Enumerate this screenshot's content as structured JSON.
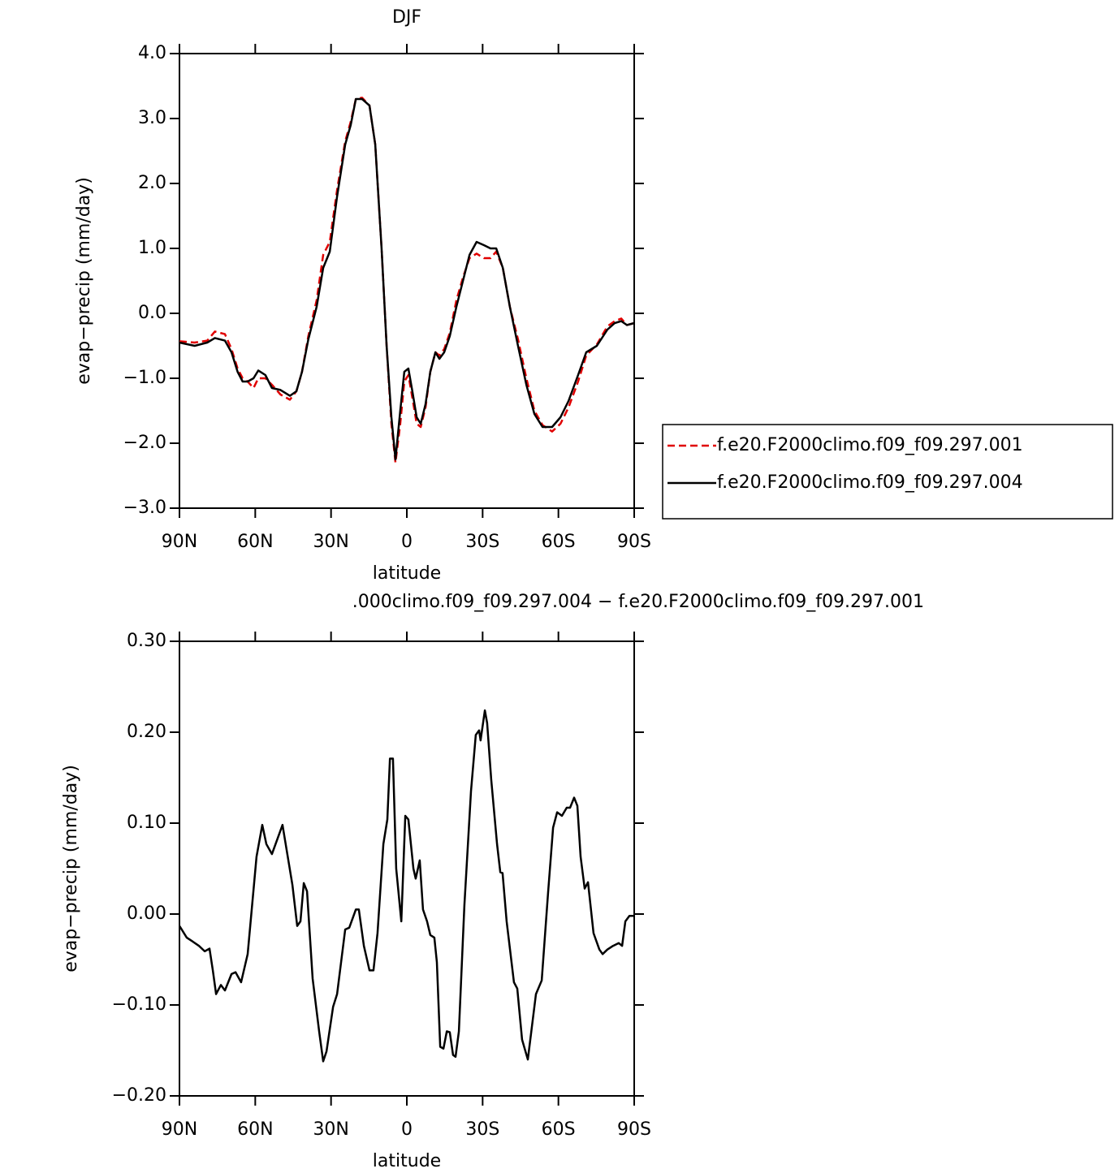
{
  "chart_data": [
    {
      "type": "line",
      "title": "DJF",
      "xlabel": "latitude",
      "ylabel": "evap−precip (mm/day)",
      "x": [
        90,
        84,
        79,
        76,
        72,
        69.4,
        67,
        65,
        63,
        60.7,
        58.8,
        56,
        53.4,
        50,
        46.3,
        43.7,
        41.5,
        39,
        35.7,
        33.1,
        30.5,
        27.6,
        24.4,
        22.2,
        20.2,
        17.7,
        14.8,
        12.5,
        10,
        8,
        6.1,
        4.5,
        2.6,
        1,
        -0.6,
        -2.2,
        -3.9,
        -5.5,
        -7.4,
        -9.3,
        -11.3,
        -12.9,
        -14.8,
        -17,
        -19.6,
        -22.2,
        -24.8,
        -27.6,
        -30.5,
        -33.1,
        -35.4,
        -38,
        -40.8,
        -44,
        -47.3,
        -50.5,
        -53.7,
        -57.5,
        -60.8,
        -64,
        -67.8,
        -71,
        -75.2,
        -79.4,
        -82.3,
        -84.9,
        -87.1,
        -90
      ],
      "series": [
        {
          "name": "f.e20.F2000climo.f09_f09.297.001",
          "color": "#e00000",
          "dashed": true,
          "values": [
            -0.43,
            -0.45,
            -0.42,
            -0.28,
            -0.32,
            -0.55,
            -0.85,
            -1.0,
            -1.05,
            -1.15,
            -1.0,
            -1.0,
            -1.1,
            -1.25,
            -1.33,
            -1.2,
            -0.9,
            -0.35,
            0.2,
            0.9,
            1.1,
            1.9,
            2.65,
            2.95,
            3.3,
            3.32,
            3.2,
            2.6,
            1.0,
            -0.5,
            -1.7,
            -2.3,
            -1.7,
            -1.05,
            -0.95,
            -1.3,
            -1.7,
            -1.75,
            -1.45,
            -0.9,
            -0.6,
            -0.65,
            -0.55,
            -0.3,
            0.2,
            0.55,
            0.85,
            0.92,
            0.85,
            0.85,
            0.95,
            0.7,
            0.1,
            -0.4,
            -1.0,
            -1.5,
            -1.72,
            -1.82,
            -1.7,
            -1.45,
            -1.05,
            -0.65,
            -0.48,
            -0.2,
            -0.12,
            -0.08,
            -0.18,
            -0.15
          ]
        },
        {
          "name": "f.e20.F2000climo.f09_f09.297.004",
          "color": "#000000",
          "dashed": false,
          "values": [
            -0.45,
            -0.5,
            -0.45,
            -0.38,
            -0.42,
            -0.6,
            -0.9,
            -1.05,
            -1.05,
            -1.0,
            -0.88,
            -0.95,
            -1.15,
            -1.18,
            -1.27,
            -1.2,
            -0.9,
            -0.4,
            0.1,
            0.7,
            0.95,
            1.8,
            2.6,
            2.9,
            3.3,
            3.3,
            3.2,
            2.6,
            1.0,
            -0.5,
            -1.6,
            -2.25,
            -1.5,
            -0.9,
            -0.85,
            -1.2,
            -1.6,
            -1.7,
            -1.4,
            -0.9,
            -0.6,
            -0.7,
            -0.6,
            -0.35,
            0.1,
            0.5,
            0.9,
            1.1,
            1.05,
            1.0,
            1.0,
            0.7,
            0.1,
            -0.5,
            -1.1,
            -1.55,
            -1.75,
            -1.75,
            -1.6,
            -1.35,
            -0.95,
            -0.6,
            -0.5,
            -0.25,
            -0.15,
            -0.12,
            -0.18,
            -0.15
          ]
        }
      ],
      "xlim": [
        90,
        -90
      ],
      "xticks": [
        {
          "value": 90,
          "label": "90N"
        },
        {
          "value": 60,
          "label": "60N"
        },
        {
          "value": 30,
          "label": "30N"
        },
        0,
        {
          "value": -30,
          "label": "30S"
        },
        {
          "value": -60,
          "label": "60S"
        },
        {
          "value": -90,
          "label": "90S"
        }
      ],
      "ylim": [
        -3,
        4
      ],
      "yticks": [
        {
          "value": 4,
          "label": "4.0"
        },
        {
          "value": 3,
          "label": "3.0"
        },
        {
          "value": 2,
          "label": "2.0"
        },
        {
          "value": 1,
          "label": "1.0"
        },
        {
          "value": 0,
          "label": "0.0"
        },
        {
          "value": -1,
          "label": "−1.0"
        },
        {
          "value": -2,
          "label": "−2.0"
        },
        {
          "value": -3,
          "label": "−3.0"
        }
      ],
      "legend": "right"
    },
    {
      "type": "line",
      "title": ".000climo.f09_f09.297.004 − f.e20.F2000climo.f09_f09.297.001",
      "xlabel": "latitude",
      "ylabel": "evap−precip (mm/day)",
      "x": [
        90,
        87.1,
        84.9,
        82.3,
        80,
        78.1,
        76.8,
        75.5,
        73.6,
        72,
        69.4,
        67.8,
        65.6,
        63,
        59.5,
        57.2,
        55.6,
        53.4,
        49.2,
        45.3,
        43.4,
        42.1,
        40.8,
        39.5,
        37.3,
        34.7,
        33.1,
        31.8,
        29.2,
        27.6,
        24.4,
        22.8,
        20.2,
        19,
        17,
        14.8,
        13.2,
        11.6,
        9.3,
        7.7,
        6.7,
        5.5,
        4.2,
        2.2,
        0.6,
        -0.6,
        -2.6,
        -3.5,
        -5.1,
        -6.4,
        -8,
        -9.3,
        -10.9,
        -11.9,
        -13.2,
        -14.5,
        -15.8,
        -17,
        -18.3,
        -19.3,
        -20.6,
        -22.8,
        -25.4,
        -27.3,
        -28.6,
        -29.2,
        -30.9,
        -31.8,
        -33.4,
        -35.7,
        -37,
        -37.9,
        -39.5,
        -42.4,
        -43.7,
        -45.6,
        -47.9,
        -49.5,
        -51.1,
        -53.4,
        -55.9,
        -57.9,
        -59.5,
        -61.4,
        -63.3,
        -64.6,
        -66.2,
        -67.5,
        -68.8,
        -70.4,
        -71.7,
        -73.9,
        -76.2,
        -77.5,
        -79.4,
        -81.6,
        -83.9,
        -85.2,
        -86.5,
        -88.1,
        -90
      ],
      "values": [
        -0.013,
        -0.026,
        -0.03,
        -0.035,
        -0.041,
        -0.038,
        -0.062,
        -0.088,
        -0.078,
        -0.084,
        -0.066,
        -0.064,
        -0.075,
        -0.044,
        0.063,
        0.098,
        0.077,
        0.066,
        0.098,
        0.032,
        -0.013,
        -0.008,
        0.034,
        0.025,
        -0.071,
        -0.129,
        -0.162,
        -0.151,
        -0.102,
        -0.088,
        -0.017,
        -0.015,
        0.005,
        0.005,
        -0.035,
        -0.062,
        -0.062,
        -0.021,
        0.077,
        0.104,
        0.171,
        0.171,
        0.05,
        -0.008,
        0.108,
        0.104,
        0.05,
        0.039,
        0.059,
        0.005,
        -0.008,
        -0.023,
        -0.026,
        -0.053,
        -0.146,
        -0.148,
        -0.129,
        -0.13,
        -0.155,
        -0.157,
        -0.129,
        0.01,
        0.135,
        0.197,
        0.202,
        0.191,
        0.224,
        0.21,
        0.148,
        0.077,
        0.046,
        0.045,
        -0.008,
        -0.075,
        -0.082,
        -0.138,
        -0.16,
        -0.124,
        -0.088,
        -0.073,
        0.023,
        0.095,
        0.112,
        0.108,
        0.117,
        0.117,
        0.128,
        0.119,
        0.063,
        0.028,
        0.035,
        -0.021,
        -0.039,
        -0.044,
        -0.039,
        -0.035,
        -0.032,
        -0.035,
        -0.008,
        -0.002,
        -0.002
      ],
      "color": "#000000",
      "xlim": [
        90,
        -90
      ],
      "xticks": [
        {
          "value": 90,
          "label": "90N"
        },
        {
          "value": 60,
          "label": "60N"
        },
        {
          "value": 30,
          "label": "30N"
        },
        0,
        {
          "value": -30,
          "label": "30S"
        },
        {
          "value": -60,
          "label": "60S"
        },
        {
          "value": -90,
          "label": "90S"
        }
      ],
      "ylim": [
        -0.2,
        0.3
      ],
      "yticks": [
        {
          "value": 0.3,
          "label": "0.30"
        },
        {
          "value": 0.2,
          "label": "0.20"
        },
        {
          "value": 0.1,
          "label": "0.10"
        },
        {
          "value": 0,
          "label": "0.00"
        },
        {
          "value": -0.1,
          "label": "−0.10"
        },
        {
          "value": -0.2,
          "label": "−0.20"
        }
      ]
    }
  ]
}
